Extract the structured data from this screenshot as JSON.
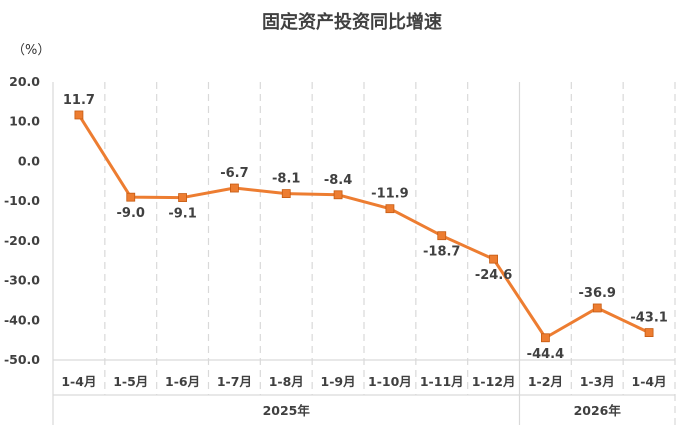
{
  "chart_data": {
    "type": "line",
    "title": "固定资产投资同比增速",
    "unit_label": "（%）",
    "categories": [
      "1-4月",
      "1-5月",
      "1-6月",
      "1-7月",
      "1-8月",
      "1-9月",
      "1-10月",
      "1-11月",
      "1-12月",
      "1-2月",
      "1-3月",
      "1-4月"
    ],
    "year_groups": [
      {
        "label": "2025年",
        "count": 9
      },
      {
        "label": "2026年",
        "count": 3
      }
    ],
    "series": [
      {
        "values": [
          11.7,
          -9.0,
          -9.1,
          -6.7,
          -8.1,
          -8.4,
          -11.9,
          -18.7,
          -24.6,
          -44.4,
          -36.9,
          -43.1
        ]
      }
    ],
    "data_labels": [
      "11.7",
      "-9.0",
      "-9.1",
      "-6.7",
      "-8.1",
      "-8.4",
      "-11.9",
      "-18.7",
      "-24.6",
      "-44.4",
      "-36.9",
      "-43.1"
    ],
    "yticks": [
      "20.0",
      "10.0",
      "0.0",
      "-10.0",
      "-20.0",
      "-30.0",
      "-40.0",
      "-50.0"
    ],
    "ylim": [
      -50,
      20
    ],
    "grid": "vertical dashed",
    "colors": {
      "line": "#ED7D31",
      "marker": "#ED7D31",
      "grid": "#D9D9D9",
      "axis": "#D9D9D9"
    }
  }
}
